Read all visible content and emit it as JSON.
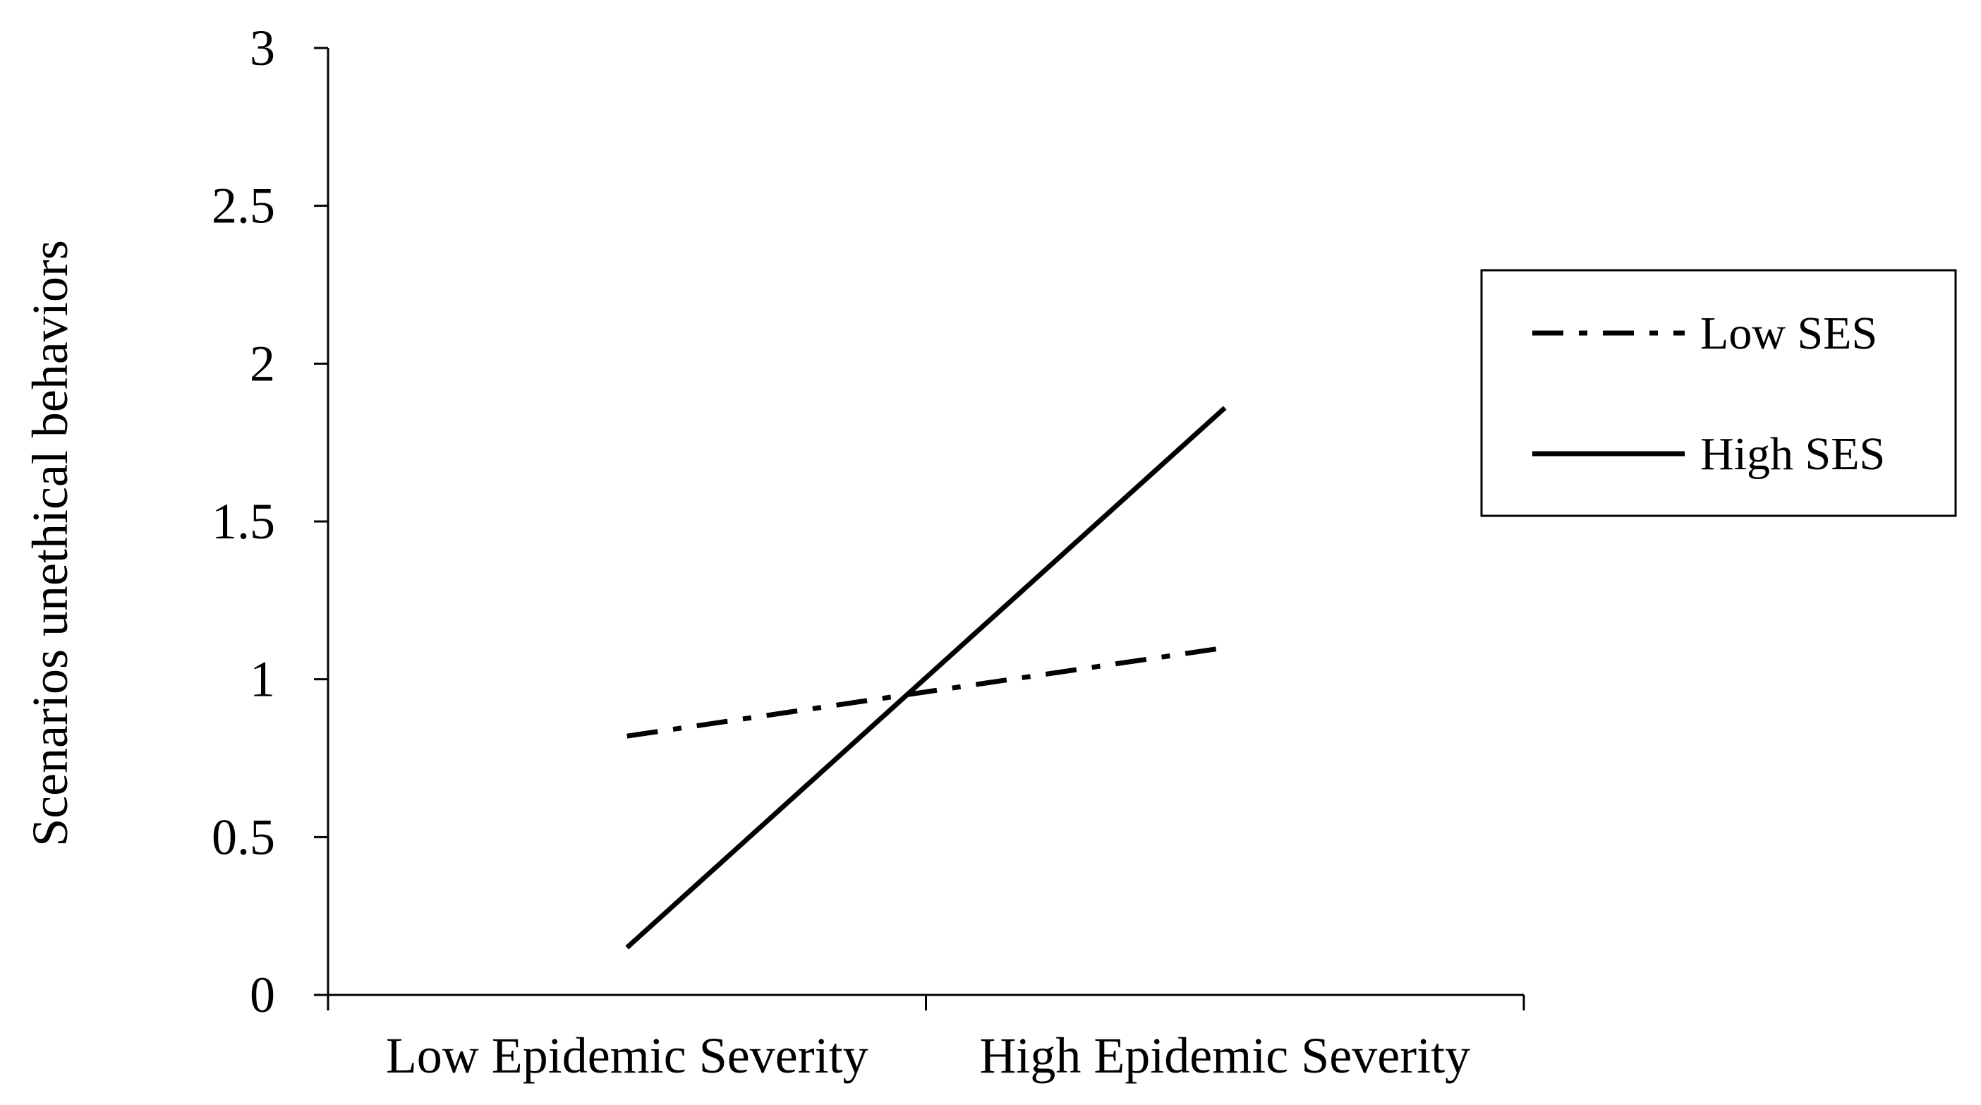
{
  "chart_data": {
    "type": "line",
    "title": "",
    "xlabel": "",
    "ylabel": "Scenarios unethical behaviors",
    "categories": [
      "Low Epidemic Severity",
      "High Epidemic Severity"
    ],
    "y_ticks": [
      "0",
      "0.5",
      "1",
      "1.5",
      "2",
      "2.5",
      "3"
    ],
    "ylim": [
      0,
      3
    ],
    "grid": false,
    "legend_position": "right",
    "series": [
      {
        "name": "Low SES",
        "values": [
          0.82,
          1.1
        ],
        "line_style": "dash-dot",
        "color": "#000000"
      },
      {
        "name": "High SES",
        "values": [
          0.15,
          1.86
        ],
        "line_style": "solid",
        "color": "#000000"
      }
    ]
  }
}
